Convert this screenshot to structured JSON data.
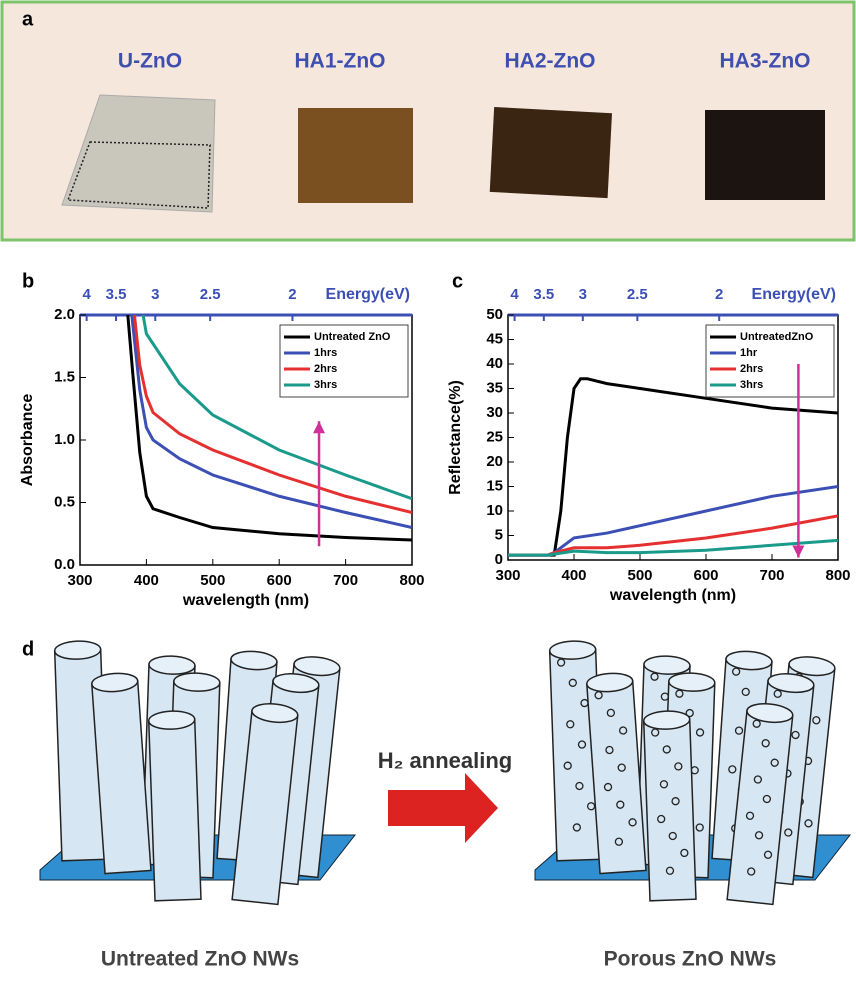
{
  "panel_a": {
    "letter": "a",
    "samples": [
      "U-ZnO",
      "HA1-ZnO",
      "HA2-ZnO",
      "HA3-ZnO"
    ]
  },
  "chart_data": [
    {
      "type": "line",
      "letter": "b",
      "x_label": "wavelength (nm)",
      "y_label": "Absorbance",
      "x2_label": "Energy(eV)",
      "xlim": [
        300,
        800
      ],
      "xticks": [
        300,
        400,
        500,
        600,
        700,
        800
      ],
      "ylim": [
        0,
        2
      ],
      "yticks": [
        {
          "value": 0,
          "label": "0.0"
        },
        {
          "value": 0.5,
          "label": "0.5"
        },
        {
          "value": 1,
          "label": "1.0"
        },
        {
          "value": 1.5,
          "label": "1.5"
        },
        {
          "value": 2,
          "label": "2.0"
        }
      ],
      "x2ticks": [
        4,
        3.5,
        3,
        2.5,
        2
      ],
      "series": [
        {
          "name": "Untreated ZnO",
          "color": "#000000",
          "x": [
            372,
            380,
            390,
            400,
            410,
            450,
            500,
            600,
            700,
            800
          ],
          "values": [
            2.0,
            1.5,
            0.9,
            0.55,
            0.45,
            0.38,
            0.3,
            0.25,
            0.22,
            0.2
          ]
        },
        {
          "name": "1hrs",
          "color": "#3b4fb5",
          "x": [
            378,
            390,
            400,
            410,
            450,
            500,
            600,
            700,
            800
          ],
          "values": [
            2.0,
            1.4,
            1.1,
            1.0,
            0.85,
            0.72,
            0.55,
            0.42,
            0.3
          ]
        },
        {
          "name": "2hrs",
          "color": "#e53030",
          "x": [
            382,
            390,
            400,
            410,
            450,
            500,
            600,
            700,
            800
          ],
          "values": [
            2.0,
            1.6,
            1.35,
            1.22,
            1.05,
            0.92,
            0.72,
            0.55,
            0.42
          ]
        },
        {
          "name": "3hrs",
          "color": "#1a9a8a",
          "x": [
            395,
            400,
            450,
            500,
            600,
            700,
            800
          ],
          "values": [
            2.0,
            1.85,
            1.45,
            1.2,
            0.92,
            0.72,
            0.53
          ]
        }
      ]
    },
    {
      "type": "line",
      "letter": "c",
      "x_label": "wavelength (nm)",
      "y_label": "Reflectance(%)",
      "x2_label": "Energy(eV)",
      "xlim": [
        300,
        800
      ],
      "xticks": [
        300,
        400,
        500,
        600,
        700,
        800
      ],
      "ylim": [
        0,
        50
      ],
      "yticks": [
        0,
        5,
        10,
        15,
        20,
        25,
        30,
        35,
        40,
        45,
        50
      ],
      "x2ticks": [
        4,
        3.5,
        3,
        2.5,
        2
      ],
      "series": [
        {
          "name": "UntreatedZnO",
          "color": "#000000",
          "x": [
            300,
            360,
            370,
            380,
            390,
            400,
            410,
            420,
            450,
            500,
            600,
            700,
            800
          ],
          "values": [
            1,
            1,
            1,
            10,
            25,
            35,
            37,
            37,
            36,
            35,
            33,
            31,
            30
          ]
        },
        {
          "name": "1hr",
          "color": "#3b4fb5",
          "x": [
            300,
            360,
            370,
            400,
            450,
            500,
            600,
            700,
            800
          ],
          "values": [
            1,
            1,
            1.5,
            4.5,
            5.5,
            7,
            10,
            13,
            15
          ]
        },
        {
          "name": "2hrs",
          "color": "#e53030",
          "x": [
            300,
            360,
            370,
            400,
            450,
            500,
            600,
            700,
            800
          ],
          "values": [
            1,
            1,
            1.5,
            2.5,
            2.5,
            3,
            4.5,
            6.5,
            9
          ]
        },
        {
          "name": "3hrs",
          "color": "#1a9a8a",
          "x": [
            300,
            360,
            370,
            400,
            450,
            500,
            600,
            700,
            800
          ],
          "values": [
            1,
            1,
            1.2,
            1.8,
            1.5,
            1.5,
            2,
            3,
            4
          ]
        }
      ]
    }
  ],
  "panel_d": {
    "letter": "d",
    "process": "H₂ annealing",
    "left_caption": "Untreated ZnO NWs",
    "right_caption": "Porous  ZnO NWs"
  }
}
